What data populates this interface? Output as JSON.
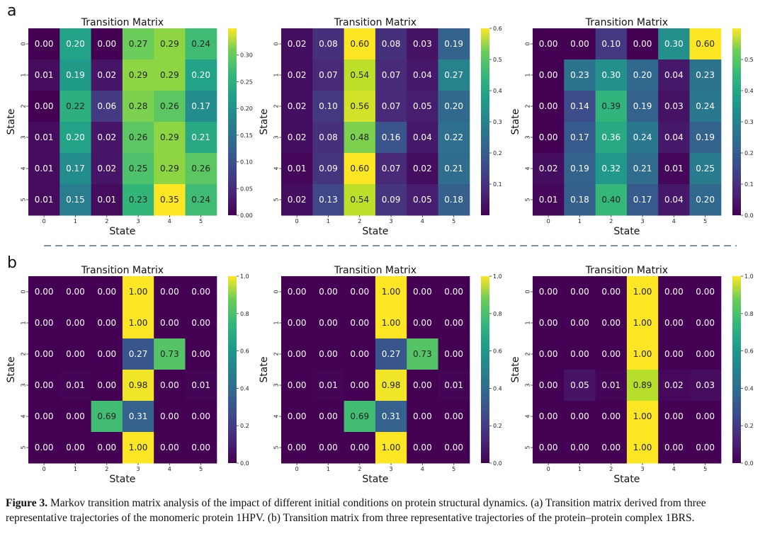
{
  "section_labels": [
    "a",
    "b"
  ],
  "caption": {
    "label": "Figure 3.",
    "text": "Markov transition matrix analysis of the impact of different initial conditions on protein structural dynamics. (a) Transition matrix derived from three representative trajectories of the monomeric protein 1HPV. (b) Transition matrix from three representative trajectories of the protein–protein complex 1BRS."
  },
  "colors": {
    "divider": "#7f93b3"
  },
  "chart_data": [
    {
      "type": "heatmap",
      "title": "Transition Matrix",
      "xlabel": "State",
      "ylabel": "State",
      "x_ticks": [
        "0",
        "1",
        "2",
        "3",
        "4",
        "5"
      ],
      "y_ticks": [
        "0",
        "1",
        "2",
        "3",
        "4",
        "5"
      ],
      "colormap": "viridis",
      "vmin": 0.0,
      "vmax": 0.35,
      "colorbar_ticks": [
        0.0,
        0.05,
        0.1,
        0.15,
        0.2,
        0.25,
        0.3
      ],
      "colorbar_tick_labels": [
        "0.00",
        "0.05",
        "0.10",
        "0.15",
        "0.20",
        "0.25",
        "0.30"
      ],
      "values": [
        [
          0.0,
          0.2,
          0.0,
          0.27,
          0.29,
          0.24
        ],
        [
          0.01,
          0.19,
          0.02,
          0.29,
          0.29,
          0.2
        ],
        [
          0.0,
          0.22,
          0.06,
          0.28,
          0.26,
          0.17
        ],
        [
          0.01,
          0.2,
          0.02,
          0.26,
          0.29,
          0.21
        ],
        [
          0.01,
          0.17,
          0.02,
          0.25,
          0.29,
          0.26
        ],
        [
          0.01,
          0.15,
          0.01,
          0.23,
          0.35,
          0.24
        ]
      ]
    },
    {
      "type": "heatmap",
      "title": "Transition Matrix",
      "xlabel": "State",
      "ylabel": "State",
      "x_ticks": [
        "0",
        "1",
        "2",
        "3",
        "4",
        "5"
      ],
      "y_ticks": [
        "0",
        "1",
        "2",
        "3",
        "4",
        "5"
      ],
      "colormap": "viridis",
      "vmin": 0.0,
      "vmax": 0.6,
      "colorbar_ticks": [
        0.1,
        0.2,
        0.3,
        0.4,
        0.5,
        0.6
      ],
      "colorbar_tick_labels": [
        "0.1",
        "0.2",
        "0.3",
        "0.4",
        "0.5",
        "0.6"
      ],
      "values": [
        [
          0.02,
          0.08,
          0.6,
          0.08,
          0.03,
          0.19
        ],
        [
          0.02,
          0.07,
          0.54,
          0.07,
          0.04,
          0.27
        ],
        [
          0.02,
          0.1,
          0.56,
          0.07,
          0.05,
          0.2
        ],
        [
          0.02,
          0.08,
          0.48,
          0.16,
          0.04,
          0.22
        ],
        [
          0.01,
          0.09,
          0.6,
          0.07,
          0.02,
          0.21
        ],
        [
          0.02,
          0.13,
          0.54,
          0.09,
          0.05,
          0.18
        ]
      ]
    },
    {
      "type": "heatmap",
      "title": "Transition Matrix",
      "xlabel": "State",
      "ylabel": "State",
      "x_ticks": [
        "0",
        "1",
        "2",
        "3",
        "4",
        "5"
      ],
      "y_ticks": [
        "0",
        "1",
        "2",
        "3",
        "4",
        "5"
      ],
      "colormap": "viridis",
      "vmin": 0.0,
      "vmax": 0.6,
      "colorbar_ticks": [
        0.0,
        0.1,
        0.2,
        0.3,
        0.4,
        0.5
      ],
      "colorbar_tick_labels": [
        "0.0",
        "0.1",
        "0.2",
        "0.3",
        "0.4",
        "0.5"
      ],
      "values": [
        [
          0.0,
          0.0,
          0.1,
          0.0,
          0.3,
          0.6
        ],
        [
          0.0,
          0.23,
          0.3,
          0.2,
          0.04,
          0.23
        ],
        [
          0.0,
          0.14,
          0.39,
          0.19,
          0.03,
          0.24
        ],
        [
          0.0,
          0.17,
          0.36,
          0.24,
          0.04,
          0.19
        ],
        [
          0.02,
          0.19,
          0.32,
          0.21,
          0.01,
          0.25
        ],
        [
          0.01,
          0.18,
          0.4,
          0.17,
          0.04,
          0.2
        ]
      ]
    },
    {
      "type": "heatmap",
      "title": "Transition Matrix",
      "xlabel": "State",
      "ylabel": "State",
      "x_ticks": [
        "0",
        "1",
        "2",
        "3",
        "4",
        "5"
      ],
      "y_ticks": [
        "0",
        "1",
        "2",
        "3",
        "4",
        "5"
      ],
      "colormap": "viridis",
      "vmin": 0.0,
      "vmax": 1.0,
      "colorbar_ticks": [
        0.0,
        0.2,
        0.4,
        0.6,
        0.8,
        1.0
      ],
      "colorbar_tick_labels": [
        "0.0",
        "0.2",
        "0.4",
        "0.6",
        "0.8",
        "1.0"
      ],
      "values": [
        [
          0.0,
          0.0,
          0.0,
          1.0,
          0.0,
          0.0
        ],
        [
          0.0,
          0.0,
          0.0,
          1.0,
          0.0,
          0.0
        ],
        [
          0.0,
          0.0,
          0.0,
          0.27,
          0.73,
          0.0
        ],
        [
          0.0,
          0.01,
          0.0,
          0.98,
          0.0,
          0.01
        ],
        [
          0.0,
          0.0,
          0.69,
          0.31,
          0.0,
          0.0
        ],
        [
          0.0,
          0.0,
          0.0,
          1.0,
          0.0,
          0.0
        ]
      ]
    },
    {
      "type": "heatmap",
      "title": "Transition Matrix",
      "xlabel": "State",
      "ylabel": "State",
      "x_ticks": [
        "0",
        "1",
        "2",
        "3",
        "4",
        "5"
      ],
      "y_ticks": [
        "0",
        "1",
        "2",
        "3",
        "4",
        "5"
      ],
      "colormap": "viridis",
      "vmin": 0.0,
      "vmax": 1.0,
      "colorbar_ticks": [
        0.0,
        0.2,
        0.4,
        0.6,
        0.8,
        1.0
      ],
      "colorbar_tick_labels": [
        "0.0",
        "0.2",
        "0.4",
        "0.6",
        "0.8",
        "1.0"
      ],
      "values": [
        [
          0.0,
          0.0,
          0.0,
          1.0,
          0.0,
          0.0
        ],
        [
          0.0,
          0.0,
          0.0,
          1.0,
          0.0,
          0.0
        ],
        [
          0.0,
          0.0,
          0.0,
          0.27,
          0.73,
          0.0
        ],
        [
          0.0,
          0.01,
          0.0,
          0.98,
          0.0,
          0.01
        ],
        [
          0.0,
          0.0,
          0.69,
          0.31,
          0.0,
          0.0
        ],
        [
          0.0,
          0.0,
          0.0,
          1.0,
          0.0,
          0.0
        ]
      ]
    },
    {
      "type": "heatmap",
      "title": "Transition Matrix",
      "xlabel": "State",
      "ylabel": "State",
      "x_ticks": [
        "0",
        "1",
        "2",
        "3",
        "4",
        "5"
      ],
      "y_ticks": [
        "0",
        "1",
        "2",
        "3",
        "4",
        "5"
      ],
      "colormap": "viridis",
      "vmin": 0.0,
      "vmax": 1.0,
      "colorbar_ticks": [
        0.0,
        0.2,
        0.4,
        0.6,
        0.8,
        1.0
      ],
      "colorbar_tick_labels": [
        "0.0",
        "0.2",
        "0.4",
        "0.6",
        "0.8",
        "1.0"
      ],
      "values": [
        [
          0.0,
          0.0,
          0.0,
          1.0,
          0.0,
          0.0
        ],
        [
          0.0,
          0.0,
          0.0,
          1.0,
          0.0,
          0.0
        ],
        [
          0.0,
          0.0,
          0.0,
          1.0,
          0.0,
          0.0
        ],
        [
          0.0,
          0.05,
          0.01,
          0.89,
          0.02,
          0.03
        ],
        [
          0.0,
          0.0,
          0.0,
          1.0,
          0.0,
          0.0
        ],
        [
          0.0,
          0.0,
          0.0,
          1.0,
          0.0,
          0.0
        ]
      ]
    }
  ]
}
